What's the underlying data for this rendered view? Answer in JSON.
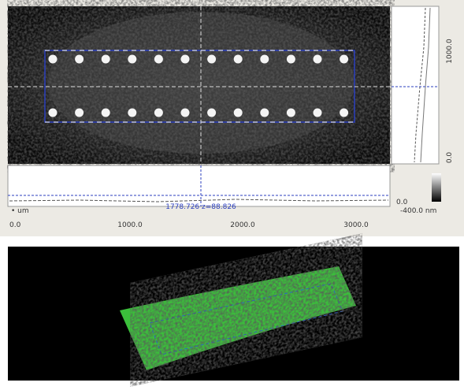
{
  "image_view": {
    "right_axis_ticks": [
      "1000.0",
      "0.0"
    ],
    "colorbar": {
      "max_label": "0.0",
      "min_label": "-400.0 nm"
    },
    "profile": {
      "unit": "um",
      "cursor_readout": "1778.726 z=88.826"
    },
    "bottom_axis_ticks": [
      "0.0",
      "1000.0",
      "2000.0",
      "3000.0"
    ]
  }
}
